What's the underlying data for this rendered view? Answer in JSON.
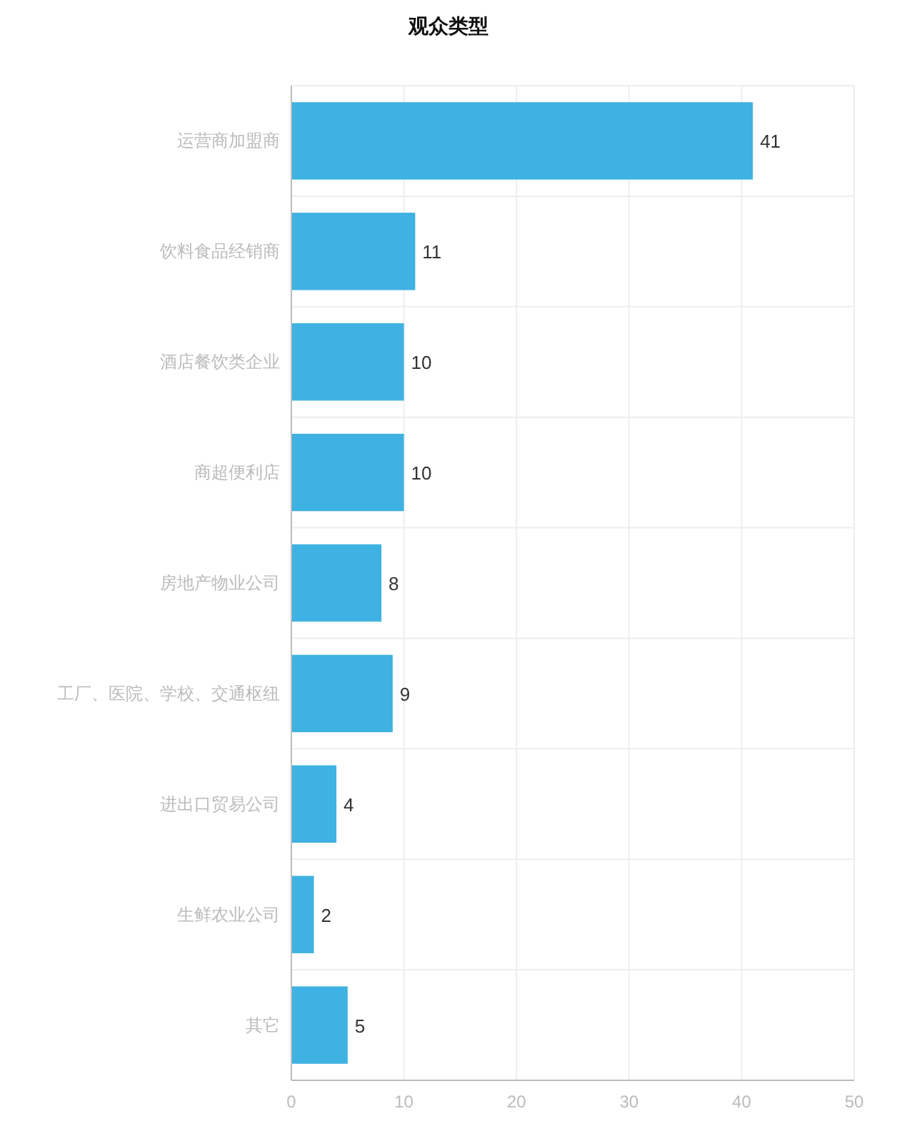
{
  "chart_data": {
    "type": "bar",
    "title": "观众类型",
    "orientation": "horizontal",
    "categories": [
      "运营商加盟商",
      "饮料食品经销商",
      "酒店餐饮类企业",
      "商超便利店",
      "房地产物业公司",
      "工厂、医院、学校、交通枢纽",
      "进出口贸易公司",
      "生鲜农业公司",
      "其它"
    ],
    "values": [
      41,
      11,
      10,
      10,
      8,
      9,
      4,
      2,
      5
    ],
    "color": "#3eb2e2",
    "xlim": [
      0,
      50
    ],
    "xticks": [
      0,
      10,
      20,
      30,
      40,
      50
    ],
    "grid": true,
    "data_labels": true
  }
}
